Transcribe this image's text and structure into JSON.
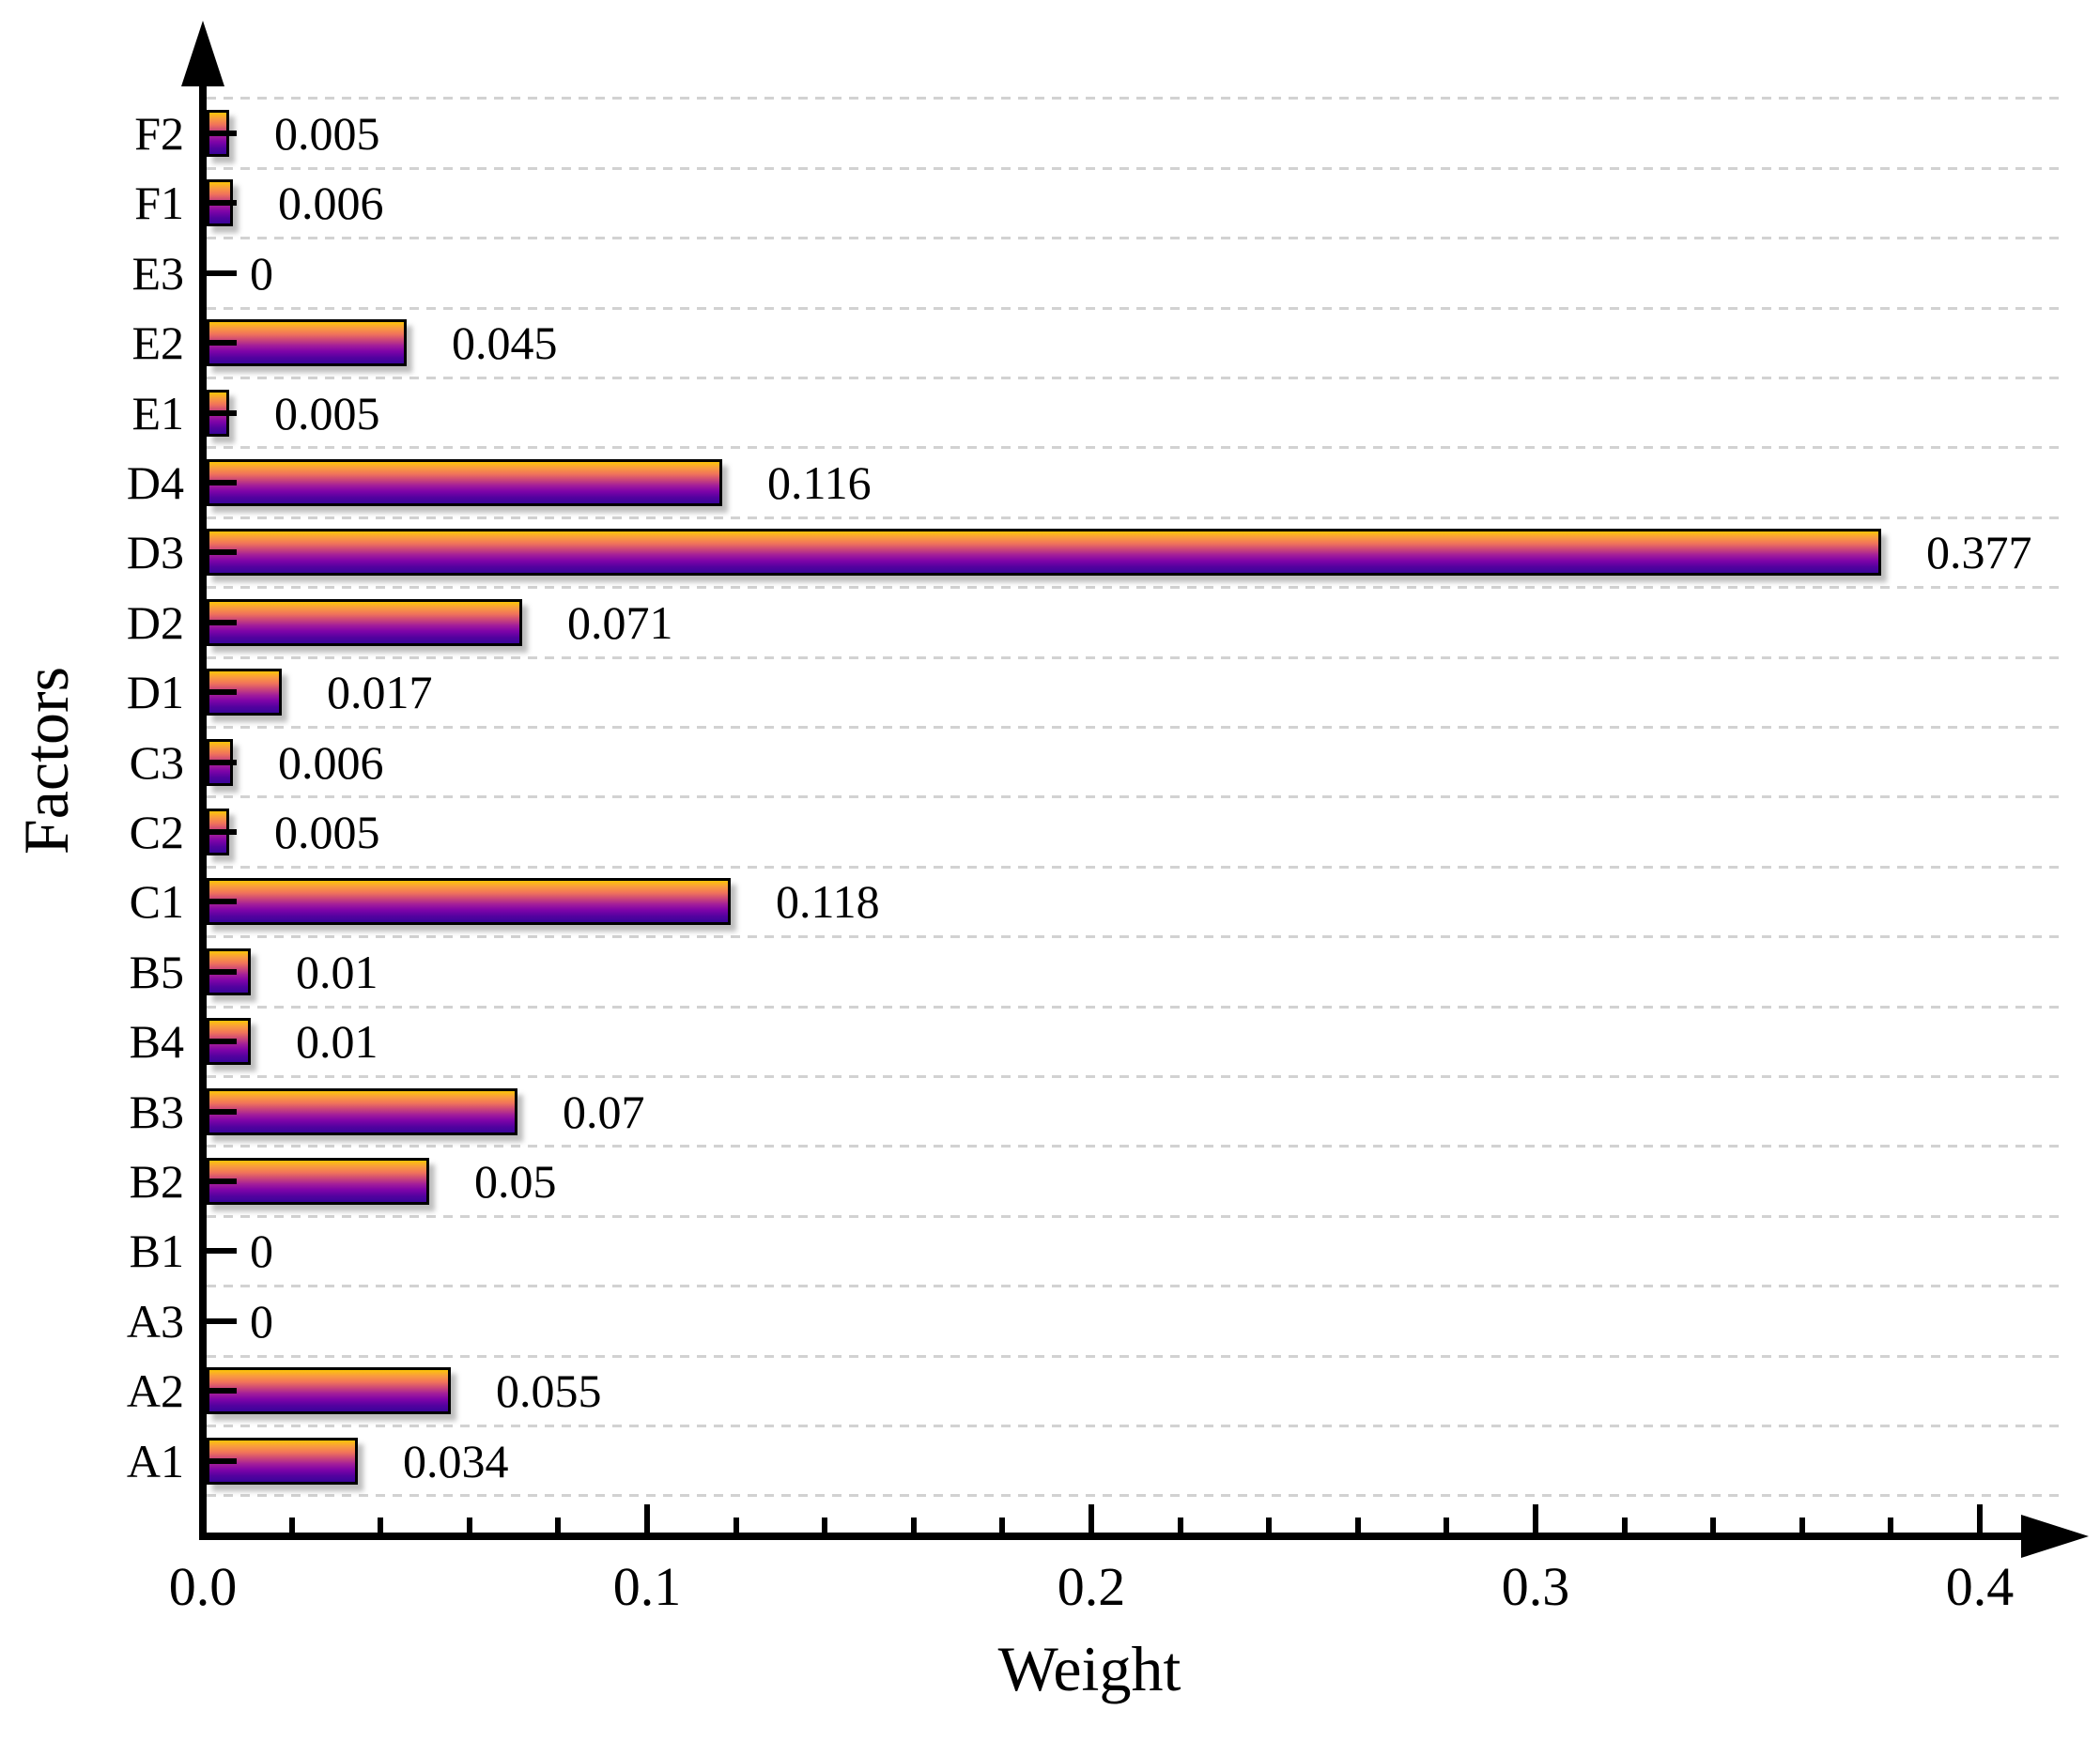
{
  "chart_data": {
    "type": "bar",
    "orientation": "horizontal",
    "title": "",
    "xlabel": "Weight",
    "ylabel": "Factors",
    "categories": [
      "F2",
      "F1",
      "E3",
      "E2",
      "E1",
      "D4",
      "D3",
      "D2",
      "D1",
      "C3",
      "C2",
      "C1",
      "B5",
      "B4",
      "B3",
      "B2",
      "B1",
      "A3",
      "A2",
      "A1"
    ],
    "values": [
      0.005,
      0.006,
      0,
      0.045,
      0.005,
      0.116,
      0.377,
      0.071,
      0.017,
      0.006,
      0.005,
      0.118,
      0.01,
      0.01,
      0.07,
      0.05,
      0,
      0,
      0.055,
      0.034
    ],
    "value_labels": [
      "0.005",
      "0.006",
      "0",
      "0.045",
      "0.005",
      "0.116",
      "0.377",
      "0.071",
      "0.017",
      "0.006",
      "0.005",
      "0.118",
      "0.01",
      "0.01",
      "0.07",
      "0.05",
      "0",
      "0",
      "0.055",
      "0.034"
    ],
    "xlim": [
      0,
      0.4
    ],
    "x_major_ticks": [
      0,
      0.1,
      0.2,
      0.3,
      0.4
    ],
    "x_tick_labels": [
      "0.0",
      "0.1",
      "0.2",
      "0.3",
      "0.4"
    ],
    "x_minor_tick_step": 0.02,
    "grid": "horizontal dashed lines at category boundaries",
    "legend": "none",
    "colors": {
      "bar_gradient_top_to_bottom": [
        "#FDC408",
        "#F99C3E",
        "#F1735A",
        "#CC4778",
        "#A21D9A",
        "#7E03A8",
        "#52029F",
        "#3A049A"
      ],
      "bar_border": "#000000",
      "axis": "#000000",
      "gridline": "#d2d2d2",
      "text": "#000000"
    }
  }
}
